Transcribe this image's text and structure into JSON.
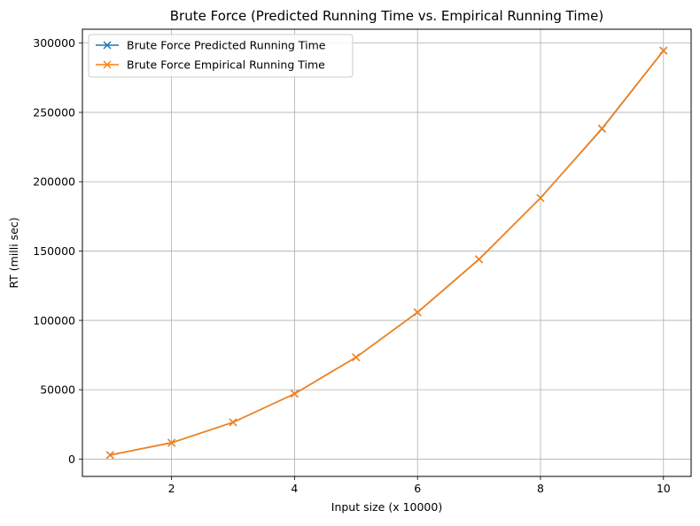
{
  "chart_data": {
    "type": "line",
    "title": "Brute Force (Predicted Running Time vs. Empirical Running Time)",
    "xlabel": "Input size (x 10000)",
    "ylabel": "RT (milli sec)",
    "x": [
      1,
      2,
      3,
      4,
      5,
      6,
      7,
      8,
      9,
      10
    ],
    "x_ticks": [
      2,
      4,
      6,
      8,
      10
    ],
    "y_ticks": [
      0,
      50000,
      100000,
      150000,
      200000,
      250000,
      300000
    ],
    "xlim": [
      0.55,
      10.45
    ],
    "ylim": [
      -12500,
      310000
    ],
    "grid": true,
    "legend_position": "top-left",
    "marker": "x",
    "series": [
      {
        "name": "Brute Force Predicted Running Time",
        "color": "#1f77b4",
        "values": [
          2900,
          11800,
          26500,
          47100,
          73400,
          105800,
          144000,
          188300,
          238200,
          294500
        ]
      },
      {
        "name": "Brute Force Empirical Running Time",
        "color": "#ff7f0e",
        "values": [
          2950,
          11800,
          26500,
          47100,
          73400,
          105900,
          144200,
          188200,
          238500,
          294700
        ]
      }
    ]
  }
}
